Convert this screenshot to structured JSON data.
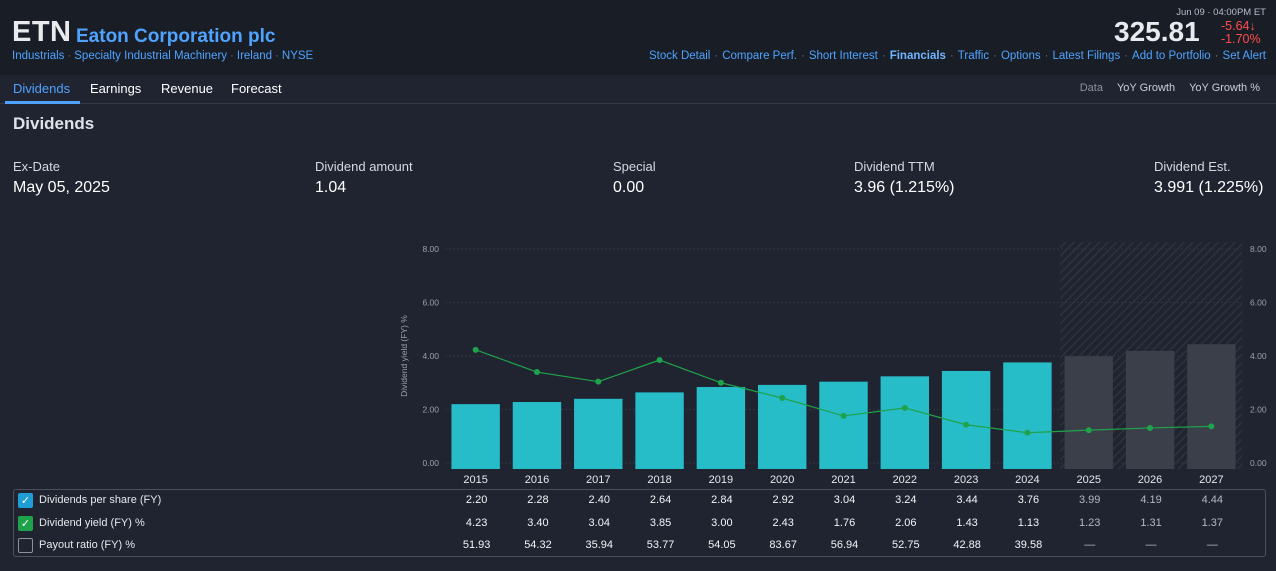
{
  "header": {
    "ticker": "ETN",
    "company": "Eaton Corporation plc",
    "breadcrumbs": [
      "Industrials",
      "Specialty Industrial Machinery",
      "Ireland",
      "NYSE"
    ],
    "timestamp": "Jun 09 · 04:00PM ET",
    "price": "325.81",
    "change": "-5.64",
    "change_arrow": "↓",
    "change_pct": "-1.70%",
    "nav": [
      {
        "label": "Stock Detail",
        "bold": false
      },
      {
        "label": "Compare Perf.",
        "bold": false
      },
      {
        "label": "Short Interest",
        "bold": false
      },
      {
        "label": "Financials",
        "bold": true
      },
      {
        "label": "Traffic",
        "bold": false
      },
      {
        "label": "Options",
        "bold": false
      },
      {
        "label": "Latest Filings",
        "bold": false
      },
      {
        "label": "Add to Portfolio",
        "bold": false
      },
      {
        "label": "Set Alert",
        "bold": false
      }
    ]
  },
  "tabs": [
    "Dividends",
    "Earnings",
    "Revenue",
    "Forecast"
  ],
  "active_tab": "Dividends",
  "modes": [
    "Data",
    "YoY Growth",
    "YoY Growth %"
  ],
  "section_title": "Dividends",
  "stats": [
    {
      "label": "Ex-Date",
      "value": "May 05, 2025"
    },
    {
      "label": "Dividend amount",
      "value": "1.04"
    },
    {
      "label": "Special",
      "value": "0.00"
    },
    {
      "label": "Dividend TTM",
      "value": "3.96 (1.215%)"
    },
    {
      "label": "Dividend Est.",
      "value": "3.991 (1.225%)"
    }
  ],
  "colors": {
    "bar": "#26bcc8",
    "estimate_bar": "#3a3f4a",
    "line": "#1fa34a",
    "accent": "#4fa3ff",
    "negative": "#ff4d4d"
  },
  "chart_data": {
    "type": "bar",
    "categories": [
      "2015",
      "2016",
      "2017",
      "2018",
      "2019",
      "2020",
      "2021",
      "2022",
      "2023",
      "2024",
      "2025",
      "2026",
      "2027"
    ],
    "estimate_from": "2025",
    "ylabel": "Dividend yield (FY) %",
    "ylim": [
      0,
      8
    ],
    "yticks": [
      "0.00",
      "2.00",
      "4.00",
      "6.00",
      "8.00"
    ],
    "series": [
      {
        "name": "Dividends per share (FY)",
        "type": "bar",
        "checked": true,
        "checkbox_color": "#1e9dd6",
        "values": [
          2.2,
          2.28,
          2.4,
          2.64,
          2.84,
          2.92,
          3.04,
          3.24,
          3.44,
          3.76,
          3.99,
          4.19,
          4.44
        ],
        "labels": [
          "2.20",
          "2.28",
          "2.40",
          "2.64",
          "2.84",
          "2.92",
          "3.04",
          "3.24",
          "3.44",
          "3.76",
          "3.99",
          "4.19",
          "4.44"
        ]
      },
      {
        "name": "Dividend yield (FY) %",
        "type": "line",
        "checked": true,
        "checkbox_color": "#1fa34a",
        "values": [
          4.23,
          3.4,
          3.04,
          3.85,
          3.0,
          2.43,
          1.76,
          2.06,
          1.43,
          1.13,
          1.23,
          1.31,
          1.37
        ],
        "labels": [
          "4.23",
          "3.40",
          "3.04",
          "3.85",
          "3.00",
          "2.43",
          "1.76",
          "2.06",
          "1.43",
          "1.13",
          "1.23",
          "1.31",
          "1.37"
        ]
      },
      {
        "name": "Payout ratio (FY) %",
        "type": "none",
        "checked": false,
        "checkbox_color": "",
        "values": [
          51.93,
          54.32,
          35.94,
          53.77,
          54.05,
          83.67,
          56.94,
          52.75,
          42.88,
          39.58,
          null,
          null,
          null
        ],
        "labels": [
          "51.93",
          "54.32",
          "35.94",
          "53.77",
          "54.05",
          "83.67",
          "56.94",
          "52.75",
          "42.88",
          "39.58",
          "—",
          "—",
          "—"
        ]
      }
    ]
  }
}
